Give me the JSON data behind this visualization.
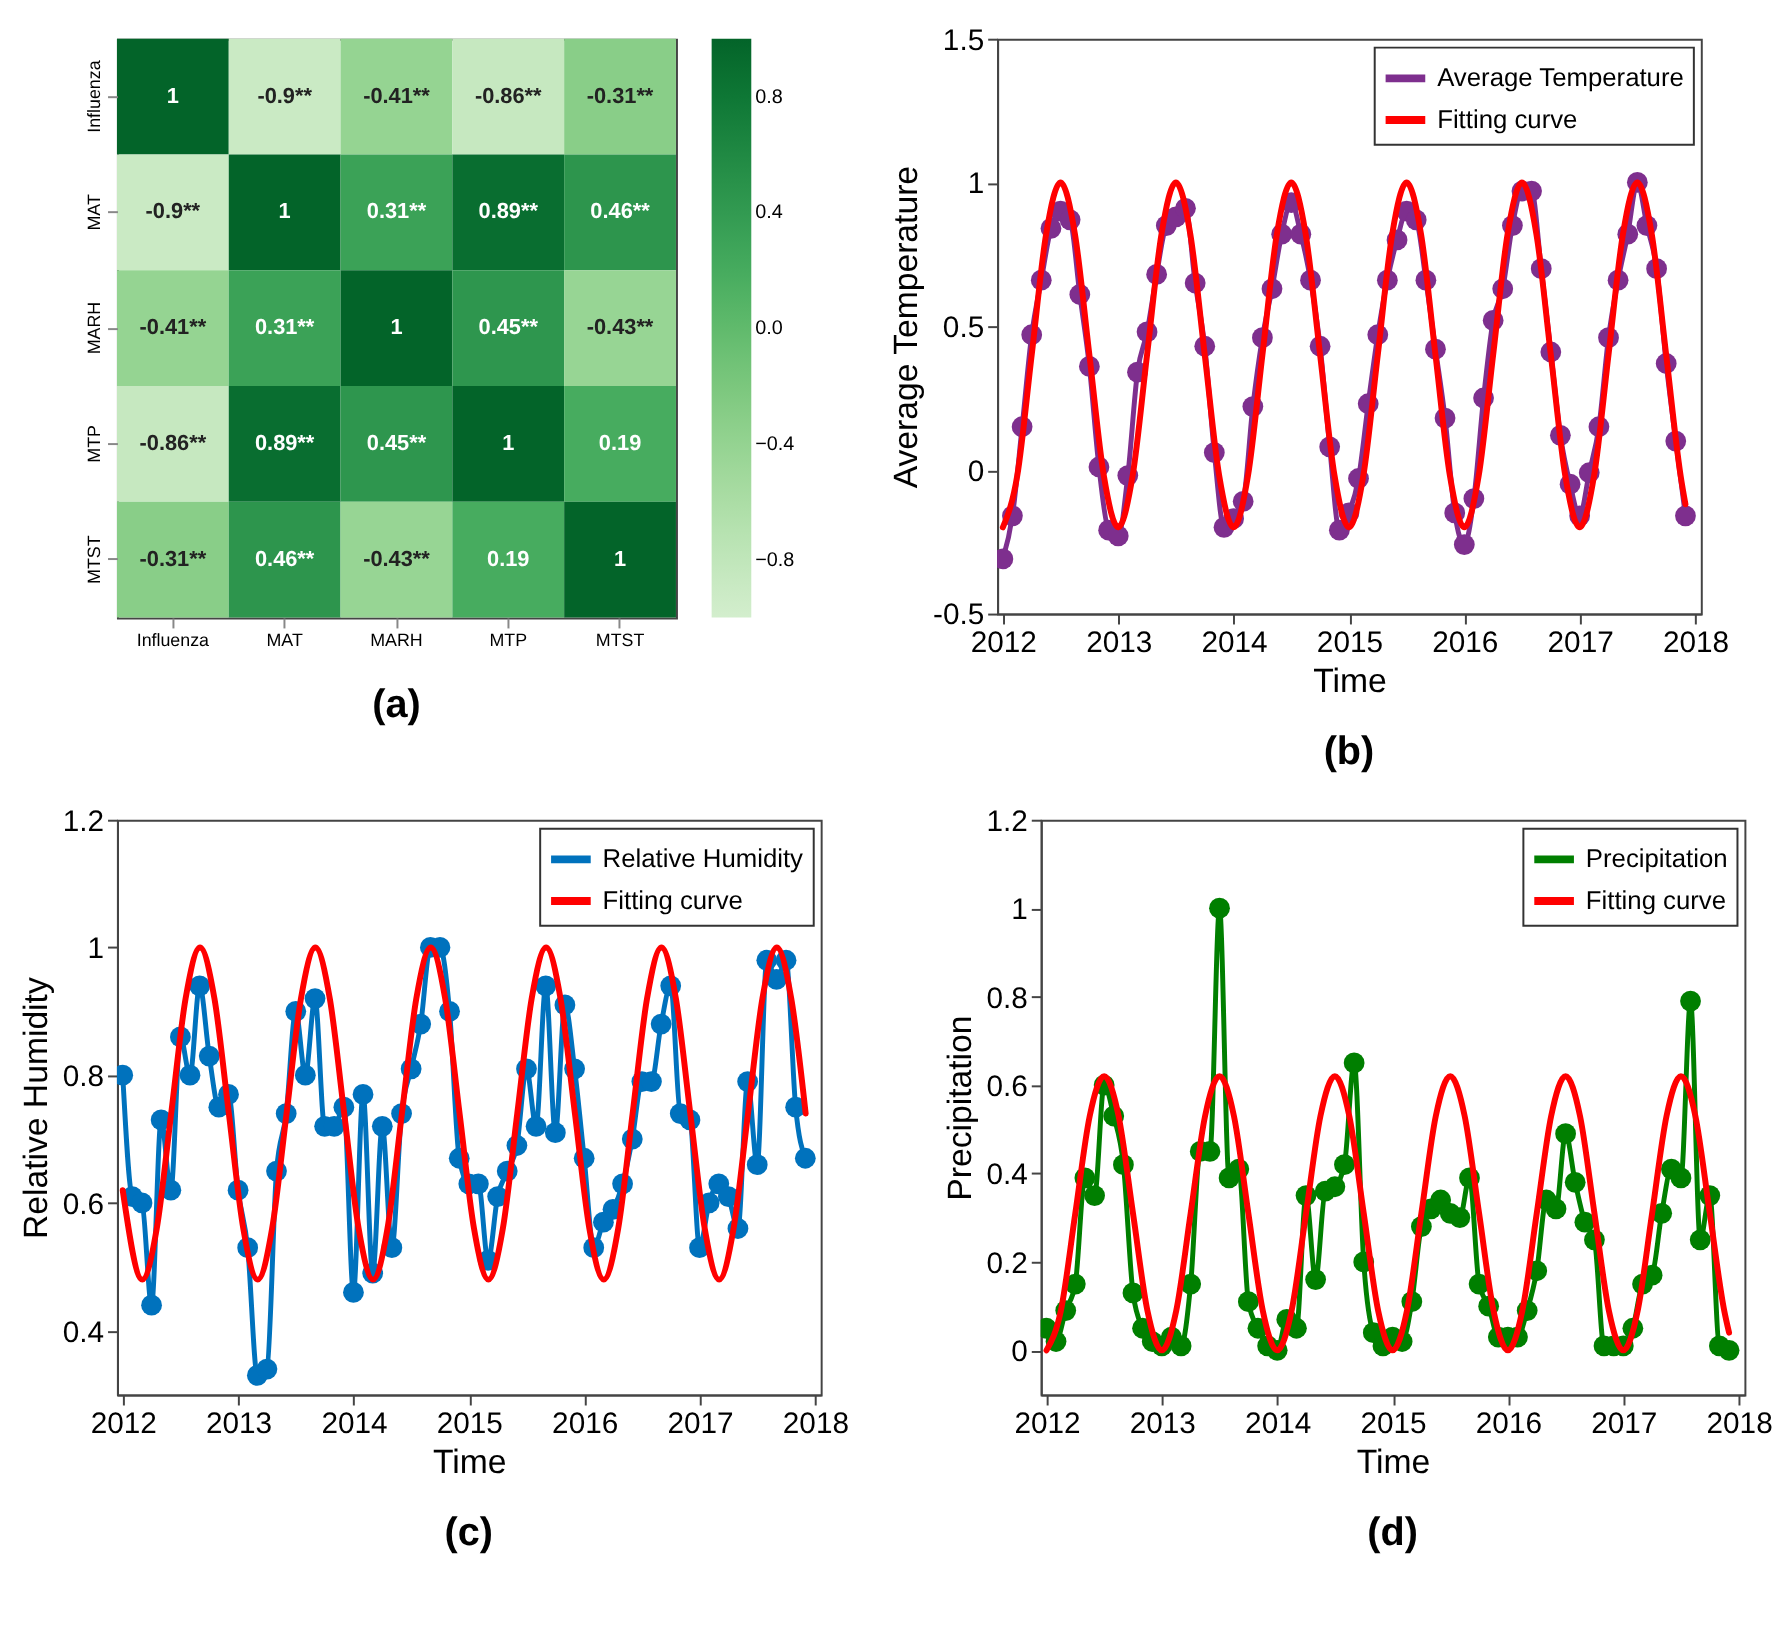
{
  "chart_data": [
    {
      "type": "heatmap",
      "title": "(a)",
      "categories": [
        "Influenza",
        "MAT",
        "MARH",
        "MTP",
        "MTST"
      ],
      "y_categories": [
        "Influenza",
        "MAT",
        "MARH",
        "MTP",
        "MTST"
      ],
      "cells": [
        [
          1,
          -0.9,
          -0.41,
          -0.86,
          -0.31
        ],
        [
          -0.9,
          1,
          0.31,
          0.89,
          0.46
        ],
        [
          -0.41,
          0.31,
          1,
          0.45,
          -0.43
        ],
        [
          -0.86,
          0.89,
          0.45,
          1,
          0.19
        ],
        [
          -0.31,
          0.46,
          -0.43,
          0.19,
          1
        ]
      ],
      "cell_labels": [
        [
          "1",
          "-0.9**",
          "-0.41**",
          "-0.86**",
          "-0.31**"
        ],
        [
          "-0.9**",
          "1",
          "0.31**",
          "0.89**",
          "0.46**"
        ],
        [
          "-0.41**",
          "0.31**",
          "1",
          "0.45**",
          "-0.43**"
        ],
        [
          "-0.86**",
          "0.89**",
          "0.45**",
          "1",
          "0.19"
        ],
        [
          "-0.31**",
          "0.46**",
          "-0.43**",
          "0.19",
          "1"
        ]
      ],
      "clim": [
        -1,
        1
      ],
      "cticks": [
        {
          "value": 0.8,
          "label": "0.8"
        },
        {
          "value": 0.4,
          "label": "0.4"
        },
        {
          "value": 0,
          "label": "0.0"
        },
        {
          "value": -0.4,
          "label": "−0.4"
        },
        {
          "value": -0.8,
          "label": "−0.8"
        }
      ]
    },
    {
      "type": "line",
      "title": "(b)",
      "xlabel": "Time",
      "ylabel": "Average Temperature",
      "xlim": [
        2011.95,
        2018.05
      ],
      "xticks": [
        2012,
        2013,
        2014,
        2015,
        2016,
        2017,
        2018
      ],
      "ylim": [
        -0.5,
        1.5
      ],
      "yticks": [
        -0.5,
        0,
        0.5,
        1,
        1.5
      ],
      "legend": "top right",
      "grid": false,
      "x": [
        2012,
        2012.083,
        2012.167,
        2012.25,
        2012.333,
        2012.417,
        2012.5,
        2012.583,
        2012.667,
        2012.75,
        2012.833,
        2012.917,
        2013,
        2013.083,
        2013.167,
        2013.25,
        2013.333,
        2013.417,
        2013.5,
        2013.583,
        2013.667,
        2013.75,
        2013.833,
        2013.917,
        2014,
        2014.083,
        2014.167,
        2014.25,
        2014.333,
        2014.417,
        2014.5,
        2014.583,
        2014.667,
        2014.75,
        2014.833,
        2014.917,
        2015,
        2015.083,
        2015.167,
        2015.25,
        2015.333,
        2015.417,
        2015.5,
        2015.583,
        2015.667,
        2015.75,
        2015.833,
        2015.917,
        2016,
        2016.083,
        2016.167,
        2016.25,
        2016.333,
        2016.417,
        2016.5,
        2016.583,
        2016.667,
        2016.75,
        2016.833,
        2016.917,
        2017,
        2017.083,
        2017.167,
        2017.25,
        2017.333,
        2017.417,
        2017.5,
        2017.583,
        2017.667,
        2017.75,
        2017.833,
        2017.917
      ],
      "series": [
        {
          "name": "Average Temperature",
          "color": "#7e2f8e",
          "marker": "circle",
          "values": [
            -0.31,
            -0.16,
            0.15,
            0.47,
            0.66,
            0.84,
            0.9,
            0.87,
            0.61,
            0.36,
            0.01,
            -0.21,
            -0.23,
            -0.02,
            0.34,
            0.48,
            0.68,
            0.85,
            0.88,
            0.91,
            0.65,
            0.43,
            0.06,
            -0.2,
            -0.17,
            -0.11,
            0.22,
            0.46,
            0.63,
            0.82,
            0.93,
            0.82,
            0.66,
            0.43,
            0.08,
            -0.21,
            -0.15,
            -0.03,
            0.23,
            0.47,
            0.66,
            0.8,
            0.9,
            0.87,
            0.66,
            0.42,
            0.18,
            -0.15,
            -0.26,
            -0.1,
            0.25,
            0.52,
            0.63,
            0.85,
            0.97,
            0.97,
            0.7,
            0.41,
            0.12,
            -0.05,
            -0.16,
            -0.01,
            0.15,
            0.46,
            0.66,
            0.82,
            1.0,
            0.85,
            0.7,
            0.37,
            0.1,
            -0.16
          ]
        },
        {
          "name": "Fitting curve",
          "color": "#ff0000",
          "marker": "none",
          "type": "line",
          "x": [
            2012,
            2012.125,
            2012.25,
            2012.375,
            2012.5,
            2012.625,
            2012.75,
            2012.875,
            2013,
            2013.125,
            2013.25,
            2013.375,
            2013.5,
            2013.625,
            2013.75,
            2013.875,
            2014,
            2014.125,
            2014.25,
            2014.375,
            2014.5,
            2014.625,
            2014.75,
            2014.875,
            2015,
            2015.125,
            2015.25,
            2015.375,
            2015.5,
            2015.625,
            2015.75,
            2015.875,
            2016,
            2016.125,
            2016.25,
            2016.375,
            2016.5,
            2016.625,
            2016.75,
            2016.875,
            2017,
            2017.125,
            2017.25,
            2017.375,
            2017.5,
            2017.625,
            2017.75,
            2017.875,
            2017.917
          ],
          "values": [
            -0.2,
            -0.02,
            0.4,
            0.82,
            1.0,
            0.82,
            0.4,
            -0.02,
            -0.2,
            -0.02,
            0.4,
            0.82,
            1.0,
            0.82,
            0.4,
            -0.02,
            -0.2,
            -0.02,
            0.4,
            0.82,
            1.0,
            0.82,
            0.4,
            -0.02,
            -0.2,
            -0.02,
            0.4,
            0.82,
            1.0,
            0.82,
            0.4,
            -0.02,
            -0.2,
            -0.02,
            0.4,
            0.82,
            1.0,
            0.82,
            0.4,
            -0.02,
            -0.2,
            -0.02,
            0.4,
            0.82,
            1.0,
            0.82,
            0.4,
            -0.02,
            -0.12
          ]
        }
      ]
    },
    {
      "type": "line",
      "title": "(c)",
      "xlabel": "Time",
      "ylabel": "Relative Humidity",
      "xlim": [
        2011.95,
        2018.05
      ],
      "xticks": [
        2012,
        2013,
        2014,
        2015,
        2016,
        2017,
        2018
      ],
      "ylim": [
        0.3,
        1.2
      ],
      "yticks": [
        0.4,
        0.6,
        0.8,
        1,
        1.2
      ],
      "legend": "top right",
      "grid": false,
      "x": [
        2012,
        2012.083,
        2012.167,
        2012.25,
        2012.333,
        2012.417,
        2012.5,
        2012.583,
        2012.667,
        2012.75,
        2012.833,
        2012.917,
        2013,
        2013.083,
        2013.167,
        2013.25,
        2013.333,
        2013.417,
        2013.5,
        2013.583,
        2013.667,
        2013.75,
        2013.833,
        2013.917,
        2014,
        2014.083,
        2014.167,
        2014.25,
        2014.333,
        2014.417,
        2014.5,
        2014.583,
        2014.667,
        2014.75,
        2014.833,
        2014.917,
        2015,
        2015.083,
        2015.167,
        2015.25,
        2015.333,
        2015.417,
        2015.5,
        2015.583,
        2015.667,
        2015.75,
        2015.833,
        2015.917,
        2016,
        2016.083,
        2016.167,
        2016.25,
        2016.333,
        2016.417,
        2016.5,
        2016.583,
        2016.667,
        2016.75,
        2016.833,
        2016.917,
        2017,
        2017.083,
        2017.167,
        2017.25,
        2017.333,
        2017.417,
        2017.5,
        2017.583,
        2017.667,
        2017.75,
        2017.833,
        2017.917
      ],
      "series": [
        {
          "name": "Relative Humidity",
          "color": "#0072bd",
          "marker": "circle",
          "values": [
            0.8,
            0.61,
            0.6,
            0.44,
            0.73,
            0.62,
            0.86,
            0.8,
            0.94,
            0.83,
            0.75,
            0.77,
            0.62,
            0.53,
            0.33,
            0.34,
            0.65,
            0.74,
            0.9,
            0.8,
            0.92,
            0.72,
            0.72,
            0.75,
            0.46,
            0.77,
            0.49,
            0.72,
            0.53,
            0.74,
            0.81,
            0.88,
            1.0,
            1.0,
            0.9,
            0.67,
            0.63,
            0.63,
            0.51,
            0.61,
            0.65,
            0.69,
            0.81,
            0.72,
            0.94,
            0.71,
            0.91,
            0.81,
            0.67,
            0.53,
            0.57,
            0.59,
            0.63,
            0.7,
            0.79,
            0.79,
            0.88,
            0.94,
            0.74,
            0.73,
            0.53,
            0.6,
            0.63,
            0.61,
            0.56,
            0.79,
            0.66,
            0.98,
            0.95,
            0.98,
            0.75,
            0.67
          ]
        },
        {
          "name": "Fitting curve",
          "color": "#ff0000",
          "marker": "none",
          "type": "line",
          "x": [
            2012,
            2012.17,
            2012.295,
            2012.42,
            2012.545,
            2012.67,
            2012.795,
            2012.92,
            2013.045,
            2013.17,
            2013.295,
            2013.42,
            2013.545,
            2013.67,
            2013.795,
            2013.92,
            2014.045,
            2014.17,
            2014.295,
            2014.42,
            2014.545,
            2014.67,
            2014.795,
            2014.92,
            2015.045,
            2015.17,
            2015.295,
            2015.42,
            2015.545,
            2015.67,
            2015.795,
            2015.92,
            2016.045,
            2016.17,
            2016.295,
            2016.42,
            2016.545,
            2016.67,
            2016.795,
            2016.92,
            2017.045,
            2017.17,
            2017.295,
            2017.42,
            2017.545,
            2017.67,
            2017.795,
            2017.92
          ],
          "values": [
            0.62,
            0.48,
            0.56,
            0.74,
            0.92,
            1.0,
            0.92,
            0.74,
            0.56,
            0.48,
            0.56,
            0.74,
            0.92,
            1.0,
            0.92,
            0.74,
            0.56,
            0.48,
            0.56,
            0.74,
            0.92,
            1.0,
            0.92,
            0.74,
            0.56,
            0.48,
            0.56,
            0.74,
            0.92,
            1.0,
            0.92,
            0.74,
            0.56,
            0.48,
            0.56,
            0.74,
            0.92,
            1.0,
            0.92,
            0.74,
            0.56,
            0.48,
            0.56,
            0.74,
            0.92,
            1.0,
            0.92,
            0.74
          ]
        }
      ]
    },
    {
      "type": "line",
      "title": "(d)",
      "xlabel": "Time",
      "ylabel": "Precipitation",
      "xlim": [
        2011.95,
        2018.05
      ],
      "xticks": [
        2012,
        2013,
        2014,
        2015,
        2016,
        2017,
        2018
      ],
      "ylim": [
        -0.1,
        1.2
      ],
      "yticks": [
        0,
        0.2,
        0.4,
        0.6,
        0.8,
        1,
        1.2
      ],
      "legend": "top right",
      "grid": false,
      "x": [
        2012,
        2012.083,
        2012.167,
        2012.25,
        2012.333,
        2012.417,
        2012.5,
        2012.583,
        2012.667,
        2012.75,
        2012.833,
        2012.917,
        2013,
        2013.083,
        2013.167,
        2013.25,
        2013.333,
        2013.417,
        2013.5,
        2013.583,
        2013.667,
        2013.75,
        2013.833,
        2013.917,
        2014,
        2014.083,
        2014.167,
        2014.25,
        2014.333,
        2014.417,
        2014.5,
        2014.583,
        2014.667,
        2014.75,
        2014.833,
        2014.917,
        2015,
        2015.083,
        2015.167,
        2015.25,
        2015.333,
        2015.417,
        2015.5,
        2015.583,
        2015.667,
        2015.75,
        2015.833,
        2015.917,
        2016,
        2016.083,
        2016.167,
        2016.25,
        2016.333,
        2016.417,
        2016.5,
        2016.583,
        2016.667,
        2016.75,
        2016.833,
        2016.917,
        2017,
        2017.083,
        2017.167,
        2017.25,
        2017.333,
        2017.417,
        2017.5,
        2017.583,
        2017.667,
        2017.75,
        2017.833,
        2017.917
      ],
      "series": [
        {
          "name": "Precipitation",
          "color": "#007f00",
          "marker": "circle",
          "values": [
            0.05,
            0.02,
            0.09,
            0.15,
            0.39,
            0.35,
            0.6,
            0.53,
            0.42,
            0.13,
            0.05,
            0.02,
            0.01,
            0.03,
            0.01,
            0.15,
            0.45,
            0.45,
            1.0,
            0.39,
            0.41,
            0.11,
            0.05,
            0.01,
            0.0,
            0.07,
            0.05,
            0.35,
            0.16,
            0.36,
            0.37,
            0.42,
            0.65,
            0.2,
            0.04,
            0.01,
            0.03,
            0.02,
            0.11,
            0.28,
            0.32,
            0.34,
            0.31,
            0.3,
            0.39,
            0.15,
            0.1,
            0.03,
            0.03,
            0.03,
            0.09,
            0.18,
            0.34,
            0.32,
            0.49,
            0.38,
            0.29,
            0.25,
            0.01,
            0.01,
            0.01,
            0.05,
            0.15,
            0.17,
            0.31,
            0.41,
            0.39,
            0.79,
            0.25,
            0.35,
            0.01,
            0.0
          ]
        },
        {
          "name": "Fitting curve",
          "color": "#ff0000",
          "marker": "none",
          "type": "line",
          "x": [
            2012,
            2012.125,
            2012.25,
            2012.375,
            2012.5,
            2012.625,
            2012.75,
            2012.875,
            2013,
            2013.125,
            2013.25,
            2013.375,
            2013.5,
            2013.625,
            2013.75,
            2013.875,
            2014,
            2014.125,
            2014.25,
            2014.375,
            2014.5,
            2014.625,
            2014.75,
            2014.875,
            2015,
            2015.125,
            2015.25,
            2015.375,
            2015.5,
            2015.625,
            2015.75,
            2015.875,
            2016,
            2016.125,
            2016.25,
            2016.375,
            2016.5,
            2016.625,
            2016.75,
            2016.875,
            2017,
            2017.125,
            2017.25,
            2017.375,
            2017.5,
            2017.625,
            2017.75,
            2017.875,
            2017.917
          ],
          "values": [
            0,
            0.09,
            0.31,
            0.53,
            0.62,
            0.53,
            0.31,
            0.09,
            0,
            0.09,
            0.31,
            0.53,
            0.62,
            0.53,
            0.31,
            0.09,
            0,
            0.09,
            0.31,
            0.53,
            0.62,
            0.53,
            0.31,
            0.09,
            0,
            0.09,
            0.31,
            0.53,
            0.62,
            0.53,
            0.31,
            0.09,
            0,
            0.09,
            0.31,
            0.53,
            0.62,
            0.53,
            0.31,
            0.09,
            0,
            0.09,
            0.31,
            0.53,
            0.62,
            0.53,
            0.31,
            0.09,
            0.04
          ]
        }
      ]
    }
  ]
}
